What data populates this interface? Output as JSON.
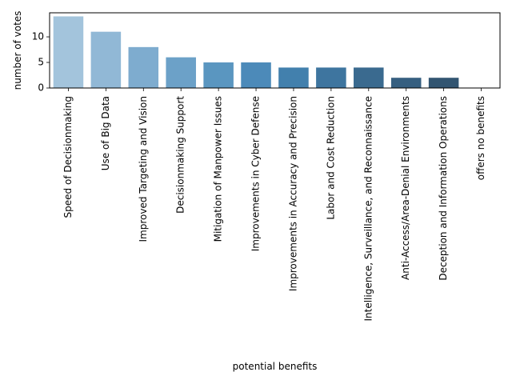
{
  "chart_data": {
    "type": "bar",
    "title": "",
    "xlabel": "potential benefits",
    "ylabel": "number of votes",
    "ylim": [
      0,
      14.7
    ],
    "yticks": [
      0,
      5,
      10
    ],
    "grid": false,
    "categories": [
      "Speed of Decisionmaking",
      "Use of Big Data",
      "Improved Targeting and Vision",
      "Decisionmaking Support",
      "Mitigation of Manpower Issues",
      "Improvements in Cyber Defense",
      "Improvements in Accuracy and Precision",
      "Labor and Cost Reduction",
      "Intelligence, Surveillance, and Reconnaissance",
      "Anti-Access/Area-Denial Environments",
      "Deception and Information Operations",
      "offers no benefits"
    ],
    "values": [
      14,
      11,
      8,
      6,
      5,
      5,
      4,
      4,
      4,
      2,
      2,
      0
    ],
    "colors": [
      "#a3c4dc",
      "#91b8d6",
      "#7eaccf",
      "#6ca1c8",
      "#5a96c0",
      "#4c8ab9",
      "#4280ad",
      "#3e759f",
      "#3a6a8f",
      "#365f80",
      "#325571",
      "#2e4a62"
    ]
  }
}
